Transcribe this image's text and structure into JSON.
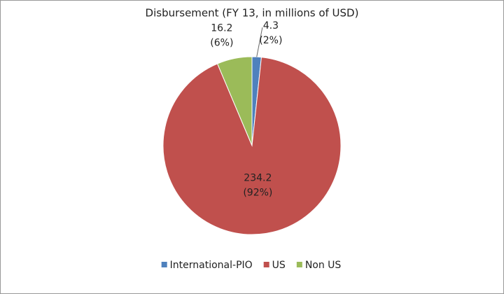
{
  "chart_data": {
    "type": "pie",
    "title": "Disbursement (FY 13, in millions of USD)",
    "categories": [
      "International-PIO",
      "US",
      "Non US"
    ],
    "values": [
      4.3,
      234.2,
      16.2
    ],
    "percent_labels": [
      "(2%)",
      "(92%)",
      "(6%)"
    ],
    "colors": [
      "#4f81bd",
      "#c0504d",
      "#9bbb59"
    ],
    "legend": "bottom"
  }
}
